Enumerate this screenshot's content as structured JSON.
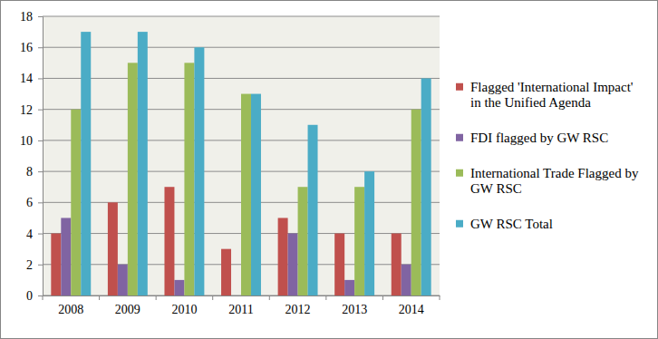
{
  "chart_data": {
    "type": "bar",
    "categories": [
      "2008",
      "2009",
      "2010",
      "2011",
      "2012",
      "2013",
      "2014"
    ],
    "series": [
      {
        "name": "Flagged 'International Impact' in the Unified Agenda",
        "color": "#c0504d",
        "values": [
          4,
          6,
          7,
          3,
          5,
          4,
          4
        ]
      },
      {
        "name": "FDI flagged by GW RSC",
        "color": "#8064a2",
        "values": [
          5,
          2,
          1,
          0,
          4,
          1,
          2
        ]
      },
      {
        "name": "International Trade Flagged by GW RSC",
        "color": "#9bbb59",
        "values": [
          12,
          15,
          15,
          13,
          7,
          7,
          12
        ]
      },
      {
        "name": "GW RSC Total",
        "color": "#4bacc6",
        "values": [
          17,
          17,
          16,
          13,
          11,
          8,
          14
        ]
      }
    ],
    "ylim": [
      0,
      18
    ],
    "yticks": [
      0,
      2,
      4,
      6,
      8,
      10,
      12,
      14,
      16,
      18
    ],
    "grid": true,
    "legend": "right"
  }
}
